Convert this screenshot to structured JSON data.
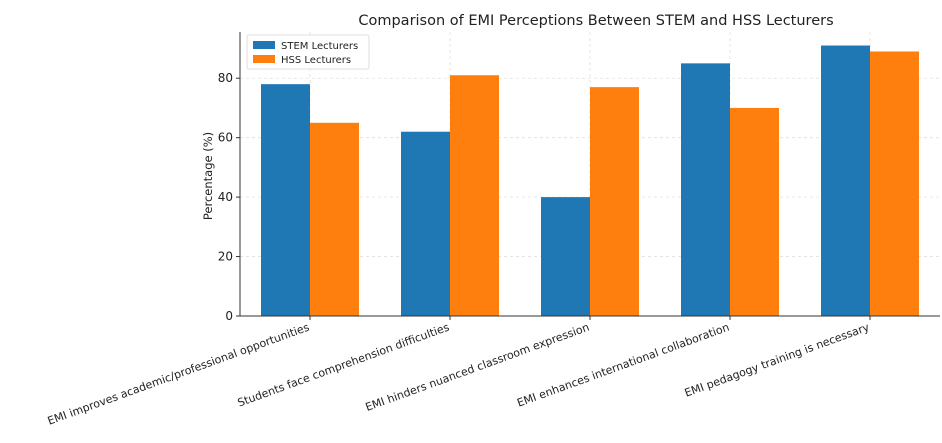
{
  "chart_data": {
    "type": "bar",
    "title": "Comparison of EMI Perceptions Between STEM and HSS Lecturers",
    "xlabel": "",
    "ylabel": "Percentage (%)",
    "categories": [
      "EMI improves academic/professional opportunities",
      "Students face comprehension difficulties",
      "EMI hinders nuanced classroom expression",
      "EMI enhances international collaboration",
      "EMI pedagogy training is necessary"
    ],
    "series": [
      {
        "name": "STEM Lecturers",
        "color": "#1f77b4",
        "values": [
          78,
          62,
          40,
          85,
          91
        ]
      },
      {
        "name": "HSS Lecturers",
        "color": "#ff7f0e",
        "values": [
          65,
          81,
          77,
          70,
          89
        ]
      }
    ],
    "ylim": [
      0,
      95.55
    ],
    "yticks": [
      0,
      20,
      40,
      60,
      80
    ],
    "grid": true,
    "legend_position": "top-left"
  }
}
